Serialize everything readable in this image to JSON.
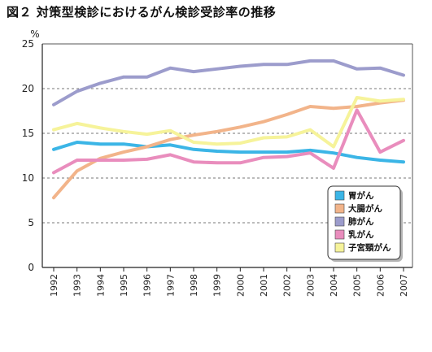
{
  "chart_data": {
    "type": "line",
    "title": "図２ 対策型検診におけるがん検診受診率の推移",
    "ylabel": "%",
    "xlabel": "",
    "ylim": [
      0,
      25
    ],
    "yticks": [
      0,
      5,
      10,
      15,
      20,
      25
    ],
    "grid": "dashed horizontal at 5, 10, 15, 20",
    "legend_position": "bottom-right",
    "x": [
      "1992",
      "1993",
      "1994",
      "1995",
      "1996",
      "1997",
      "1998",
      "1999",
      "2000",
      "2001",
      "2002",
      "2003",
      "2004",
      "2005",
      "2006",
      "2007"
    ],
    "series": [
      {
        "name": "胃がん",
        "color": "#3bb5e6",
        "values": [
          13.2,
          14.0,
          13.8,
          13.8,
          13.5,
          13.7,
          13.2,
          13.0,
          12.9,
          12.9,
          12.9,
          13.1,
          12.8,
          12.3,
          12.0,
          11.8
        ]
      },
      {
        "name": "大腸がん",
        "color": "#f2b48a",
        "values": [
          7.8,
          10.8,
          12.2,
          12.9,
          13.5,
          14.3,
          14.8,
          15.2,
          15.7,
          16.3,
          17.1,
          18.0,
          17.8,
          18.0,
          18.4,
          18.7
        ]
      },
      {
        "name": "肺がん",
        "color": "#9c9ccc",
        "values": [
          18.2,
          19.7,
          20.6,
          21.3,
          21.3,
          22.3,
          21.9,
          22.2,
          22.5,
          22.7,
          22.7,
          23.1,
          23.1,
          22.2,
          22.3,
          21.5
        ]
      },
      {
        "name": "乳がん",
        "color": "#e98dbd",
        "values": [
          10.6,
          12.0,
          12.0,
          12.0,
          12.1,
          12.6,
          11.8,
          11.7,
          11.7,
          12.3,
          12.4,
          12.8,
          11.1,
          17.6,
          12.9,
          14.2
        ]
      },
      {
        "name": "子宮頸がん",
        "color": "#f6f39a",
        "values": [
          15.4,
          16.1,
          15.6,
          15.2,
          14.9,
          15.3,
          14.0,
          13.8,
          13.9,
          14.5,
          14.6,
          15.4,
          13.5,
          19.0,
          18.6,
          18.8
        ]
      }
    ]
  }
}
